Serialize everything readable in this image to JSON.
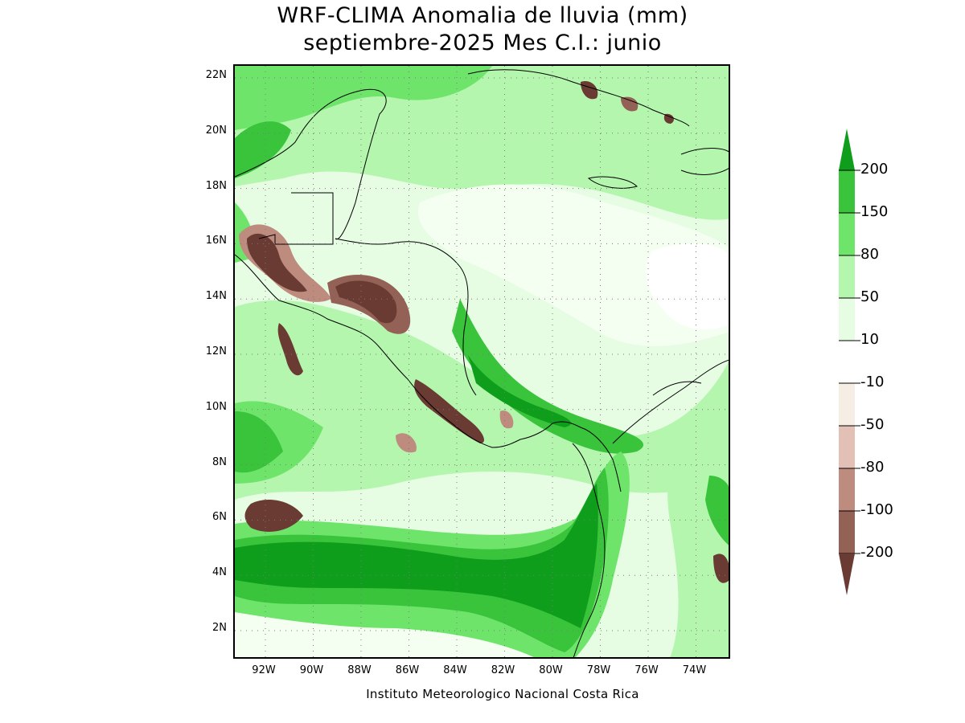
{
  "title": {
    "line1": "WRF-CLIMA Anomalia de lluvia (mm)",
    "line2": "septiembre-2025 Mes C.I.: junio"
  },
  "map": {
    "y_ticks": [
      "22N",
      "20N",
      "18N",
      "16N",
      "14N",
      "12N",
      "10N",
      "8N",
      "6N",
      "4N",
      "2N"
    ],
    "x_ticks": [
      "92W",
      "90W",
      "88W",
      "86W",
      "84W",
      "82W",
      "80W",
      "78W",
      "76W",
      "74W"
    ],
    "grid": "dotted",
    "credit": "Instituto Meteorologico Nacional Costa Rica"
  },
  "colorbar": {
    "labels": [
      "200",
      "150",
      "80",
      "50",
      "10",
      "-10",
      "-50",
      "-80",
      "-100",
      "-200"
    ],
    "colors": [
      "#0f9e1b",
      "#39c43b",
      "#6ee56a",
      "#b4f6ad",
      "#e6fde3",
      "#ffffff",
      "#f6eee5",
      "#e3c0b6",
      "#be8c7e",
      "#936155",
      "#6a3b33"
    ],
    "top_color": "#0f9e1b",
    "bottom_color": "#6a3b33"
  }
}
